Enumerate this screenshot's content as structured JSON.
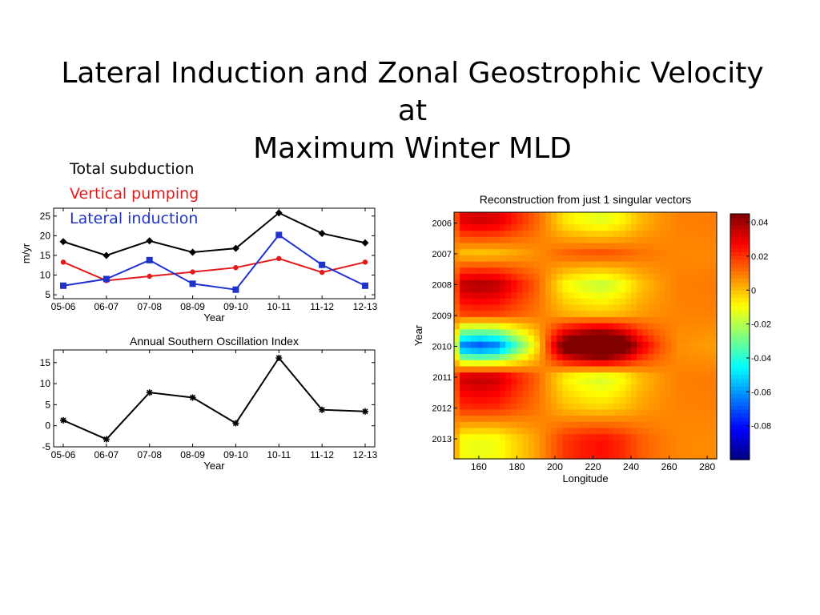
{
  "slide": {
    "title_line1": "Lateral Induction and Zonal Geostrophic Velocity at",
    "title_line2": "Maximum Winter MLD"
  },
  "legend": [
    {
      "label": "Total subduction",
      "color": "#000000"
    },
    {
      "label": "Vertical pumping",
      "color": "#e31a1c"
    },
    {
      "label": "Lateral induction",
      "color": "#1f33cc"
    }
  ],
  "chart_data": [
    {
      "type": "line",
      "title": "",
      "xlabel": "Year",
      "ylabel": "m/yr",
      "categories": [
        "05-06",
        "06-07",
        "07-08",
        "08-09",
        "09-10",
        "10-11",
        "11-12",
        "12-13"
      ],
      "ylim": [
        4,
        27
      ],
      "yticks": [
        5,
        10,
        15,
        20,
        25
      ],
      "grid": false,
      "series": [
        {
          "name": "Total subduction",
          "color": "#000000",
          "marker": "diamond",
          "values": [
            18.5,
            15.0,
            18.7,
            15.8,
            16.8,
            25.8,
            20.6,
            18.2
          ]
        },
        {
          "name": "Vertical pumping",
          "color": "#e31a1c",
          "marker": "circle",
          "values": [
            13.3,
            8.6,
            9.7,
            10.8,
            11.9,
            14.2,
            10.7,
            13.3
          ]
        },
        {
          "name": "Lateral induction",
          "color": "#1f33cc",
          "marker": "square",
          "values": [
            7.3,
            9.0,
            13.8,
            7.8,
            6.3,
            20.2,
            12.6,
            7.3
          ]
        }
      ]
    },
    {
      "type": "line",
      "title": "Annual Southern Oscillation Index",
      "xlabel": "Year",
      "ylabel": "",
      "categories": [
        "05-06",
        "06-07",
        "07-08",
        "08-09",
        "09-10",
        "10-11",
        "11-12",
        "12-13"
      ],
      "ylim": [
        -5,
        18
      ],
      "yticks": [
        -5,
        0,
        5,
        10,
        15
      ],
      "grid": false,
      "series": [
        {
          "color": "#000000",
          "marker": "star",
          "values": [
            1.3,
            -3.2,
            7.9,
            6.7,
            0.6,
            16.1,
            3.8,
            3.4
          ]
        }
      ]
    },
    {
      "type": "heatmap",
      "title": "Reconstruction from just 1 singular vectors",
      "xlabel": "Longitude",
      "ylabel": "Year",
      "xlim": [
        147,
        285
      ],
      "xticks": [
        160,
        180,
        200,
        220,
        240,
        260,
        280
      ],
      "y": [
        2006,
        2007,
        2008,
        2009,
        2010,
        2011,
        2012,
        2013
      ],
      "ylim": [
        2005.65,
        2013.65
      ],
      "colormap": "jet",
      "clim": [
        -0.1,
        0.045
      ],
      "colorbar_ticks": [
        0.04,
        0.02,
        0,
        -0.02,
        -0.04,
        -0.06,
        -0.08
      ],
      "colorbar_labels": [
        "0.04",
        "0.02",
        "0",
        "-0.02",
        "-0.04",
        "-0.06",
        "-0.08"
      ],
      "row_amplitude": [
        0.55,
        -0.22,
        0.7,
        0.2,
        -1.8,
        0.65,
        0.3,
        -0.45
      ],
      "spatial_pattern": [
        [
          148,
          0.2
        ],
        [
          150,
          0.9
        ],
        [
          160,
          1.0
        ],
        [
          170,
          0.92
        ],
        [
          180,
          0.55
        ],
        [
          190,
          0.2
        ],
        [
          196,
          -0.1
        ],
        [
          205,
          -0.55
        ],
        [
          215,
          -0.75
        ],
        [
          225,
          -0.85
        ],
        [
          235,
          -0.65
        ],
        [
          245,
          -0.3
        ],
        [
          255,
          -0.1
        ],
        [
          265,
          0.02
        ],
        [
          285,
          0.05
        ]
      ]
    }
  ]
}
